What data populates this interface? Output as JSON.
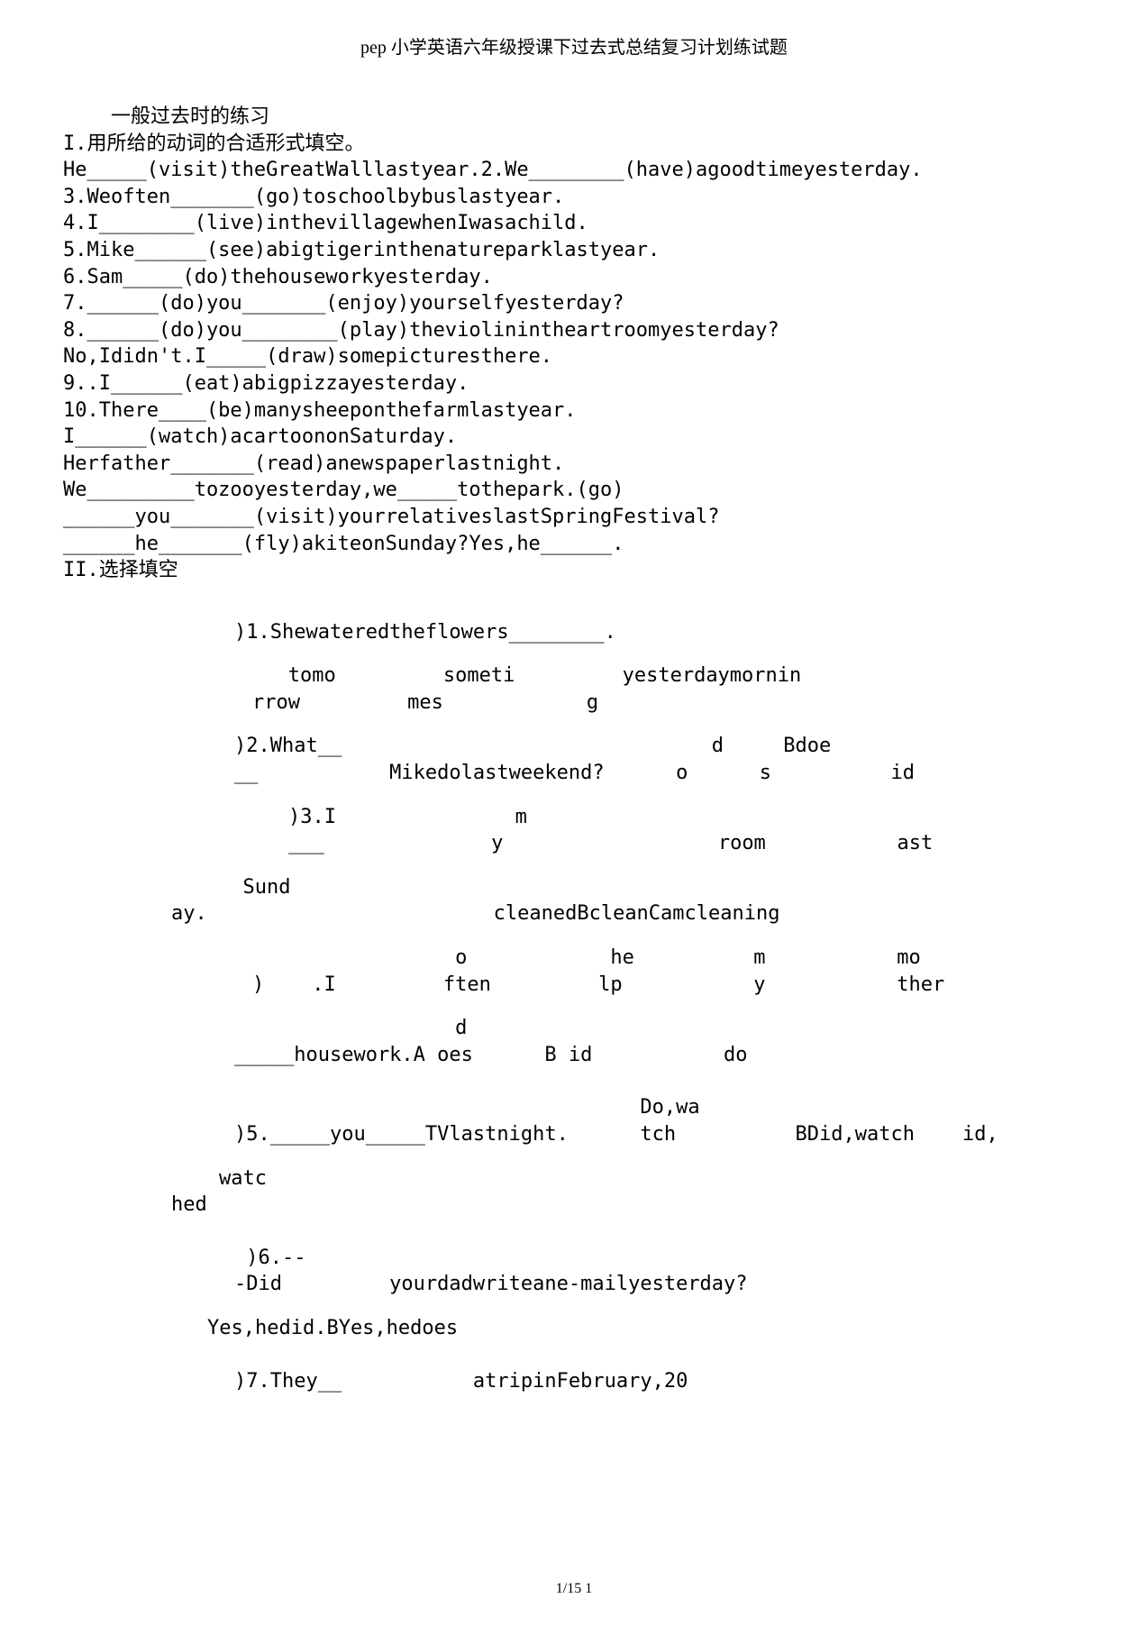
{
  "header": "pep 小学英语六年级授课下过去式总结复习计划练试题",
  "title_line": "    一般过去时的练习",
  "section1": "I.用所给的动词的合适形式填空。",
  "fills": [
    "He_____(visit)theGreatWalllastyear.2.We________(have)agoodtimeyesterday.",
    "3.Weoften_______(go)toschoolbybuslastyear.",
    "4.I________(live)inthevillagewhenIwasachild.",
    "5.Mike______(see)abigtigerinthenatureparklastyear.",
    "6.Sam_____(do)thehouseworkyesterday.",
    "7.______(do)you_______(enjoy)yourselfyesterday?",
    "8.______(do)you________(play)theviolinintheartroomyesterday?",
    "No,Ididn't.I_____(draw)somepicturesthere.",
    "9..I______(eat)abigpizzayesterday.",
    "10.There____(be)manysheeponthefarmlastyear.",
    "I______(watch)acartoononSaturday.",
    "Herfather_______(read)anewspaperlastnight.",
    "We_________tozooyesterday,we_____tothepark.(go)",
    "______you_______(visit)yourrelativeslastSpringFestival?",
    "______he_______(fly)akiteonSunday?Yes,he______.",
    "II.选择填空"
  ],
  "q1": {
    "main": ")1.Shewateredtheflowers________.",
    "r1": "   tomo         someti         yesterdaymornin",
    "r2": "rrow         mes            g"
  },
  "q2": {
    "r1": ")2.What__                               d     Bdoe",
    "r2": "__           Mikedolastweekend?      o      s          id"
  },
  "q3": {
    "r1": ")3.I               m",
    "r2": "___              y                  room           ast"
  },
  "sund": {
    "r1": "      Sund",
    "r2": "ay.                        cleanedBcleanCamcleaning"
  },
  "q4": {
    "r1": "                 o            he          m           mo",
    "r2": ")    .I         ften         lp           y           ther",
    "r3": "                 d",
    "r4": "_____housework.A oes      B id           do"
  },
  "q5": {
    "r1": "                                  Do,wa",
    "r2": ")5._____you_____TVlastnight.      tch          BDid,watch    id,",
    "r3": "    watc",
    "r4": "hed"
  },
  "q6": {
    "r1": " )6.--",
    "r2": "-Did         yourdadwriteane-mailyesterday?",
    "r3": "Yes,hedid.BYes,hedoes"
  },
  "q7": ")7.They__           atripinFebruary,20",
  "footer": "1/15 1"
}
